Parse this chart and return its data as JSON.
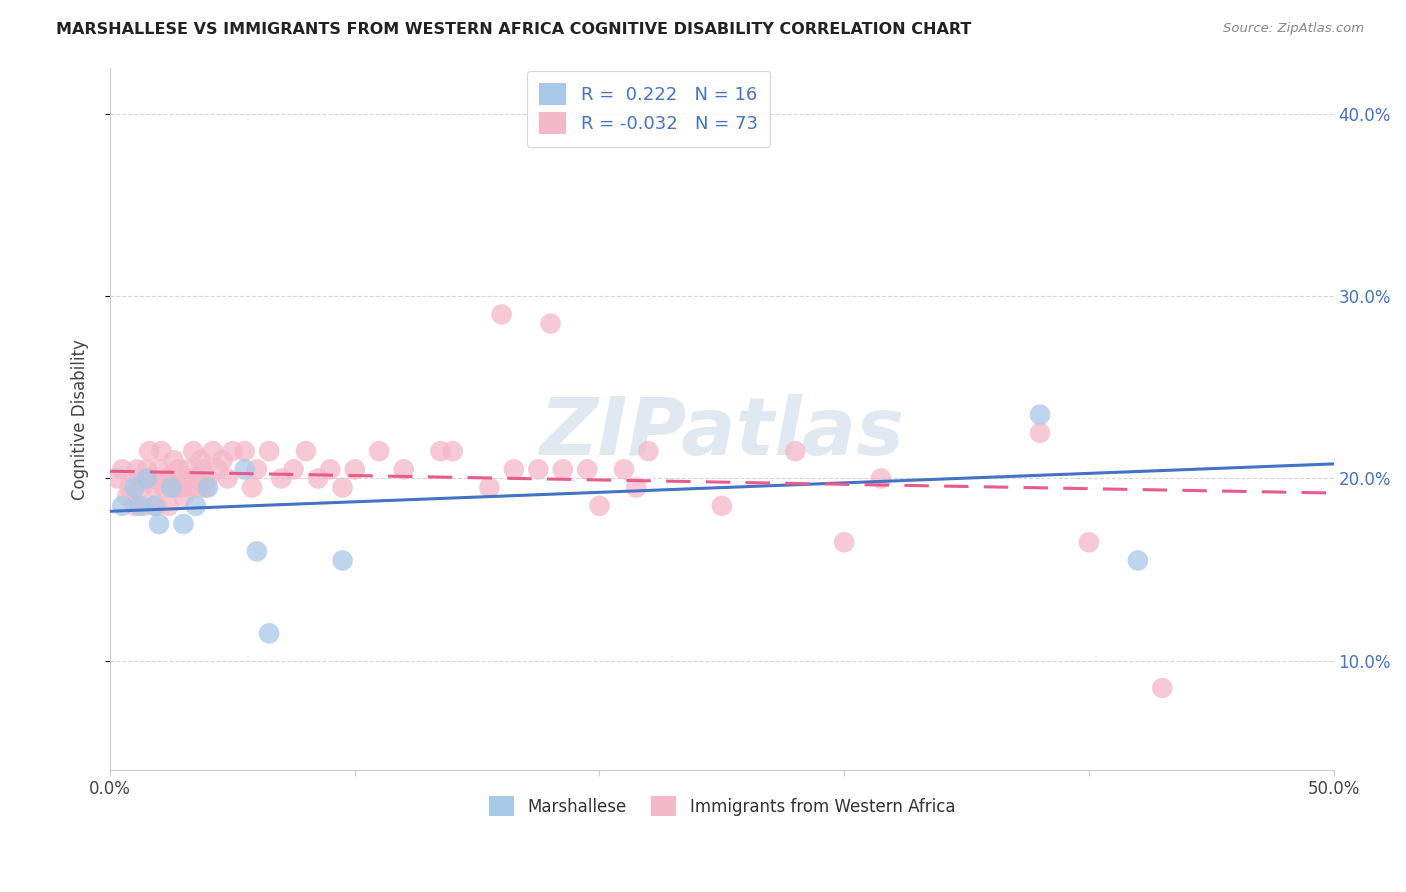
{
  "title": "MARSHALLESE VS IMMIGRANTS FROM WESTERN AFRICA COGNITIVE DISABILITY CORRELATION CHART",
  "source": "Source: ZipAtlas.com",
  "ylabel": "Cognitive Disability",
  "xlim": [
    0.0,
    0.5
  ],
  "ylim": [
    0.04,
    0.425
  ],
  "xticks": [
    0.0,
    0.1,
    0.2,
    0.3,
    0.4,
    0.5
  ],
  "xtick_labels": [
    "0.0%",
    "",
    "",
    "",
    "",
    "50.0%"
  ],
  "yticks": [
    0.1,
    0.2,
    0.3,
    0.4
  ],
  "ytick_labels": [
    "10.0%",
    "20.0%",
    "30.0%",
    "40.0%"
  ],
  "legend_label1": "Marshallese",
  "legend_label2": "Immigrants from Western Africa",
  "R1": 0.222,
  "N1": 16,
  "R2": -0.032,
  "N2": 73,
  "blue_color": "#a8c8e8",
  "pink_color": "#f4b8c8",
  "blue_line_color": "#4472c4",
  "pink_line_color": "#e85b8a",
  "watermark": "ZIPatlas",
  "blue_dots_x": [
    0.005,
    0.01,
    0.012,
    0.015,
    0.018,
    0.02,
    0.025,
    0.03,
    0.035,
    0.04,
    0.055,
    0.06,
    0.065,
    0.095,
    0.38,
    0.42
  ],
  "blue_dots_y": [
    0.185,
    0.195,
    0.185,
    0.2,
    0.185,
    0.175,
    0.195,
    0.175,
    0.185,
    0.195,
    0.205,
    0.16,
    0.115,
    0.155,
    0.235,
    0.155
  ],
  "pink_dots_x": [
    0.003,
    0.005,
    0.007,
    0.008,
    0.01,
    0.011,
    0.012,
    0.013,
    0.014,
    0.015,
    0.016,
    0.017,
    0.018,
    0.019,
    0.02,
    0.021,
    0.022,
    0.023,
    0.024,
    0.025,
    0.026,
    0.027,
    0.028,
    0.029,
    0.03,
    0.031,
    0.032,
    0.033,
    0.034,
    0.035,
    0.036,
    0.037,
    0.038,
    0.039,
    0.04,
    0.042,
    0.044,
    0.046,
    0.048,
    0.05,
    0.055,
    0.058,
    0.06,
    0.065,
    0.07,
    0.075,
    0.08,
    0.085,
    0.09,
    0.095,
    0.1,
    0.11,
    0.12,
    0.135,
    0.14,
    0.155,
    0.16,
    0.165,
    0.175,
    0.18,
    0.185,
    0.195,
    0.2,
    0.21,
    0.215,
    0.22,
    0.25,
    0.28,
    0.3,
    0.315,
    0.38,
    0.4,
    0.43
  ],
  "pink_dots_y": [
    0.2,
    0.205,
    0.19,
    0.195,
    0.185,
    0.205,
    0.2,
    0.195,
    0.185,
    0.205,
    0.215,
    0.2,
    0.195,
    0.185,
    0.205,
    0.215,
    0.195,
    0.2,
    0.185,
    0.2,
    0.21,
    0.195,
    0.205,
    0.195,
    0.19,
    0.2,
    0.205,
    0.195,
    0.215,
    0.2,
    0.195,
    0.21,
    0.205,
    0.195,
    0.2,
    0.215,
    0.205,
    0.21,
    0.2,
    0.215,
    0.215,
    0.195,
    0.205,
    0.215,
    0.2,
    0.205,
    0.215,
    0.2,
    0.205,
    0.195,
    0.205,
    0.215,
    0.205,
    0.215,
    0.215,
    0.195,
    0.29,
    0.205,
    0.205,
    0.285,
    0.205,
    0.205,
    0.185,
    0.205,
    0.195,
    0.215,
    0.185,
    0.215,
    0.165,
    0.2,
    0.225,
    0.165,
    0.085
  ],
  "blue_trend_start_y": 0.182,
  "blue_trend_end_y": 0.208,
  "pink_trend_start_y": 0.204,
  "pink_trend_end_y": 0.192
}
